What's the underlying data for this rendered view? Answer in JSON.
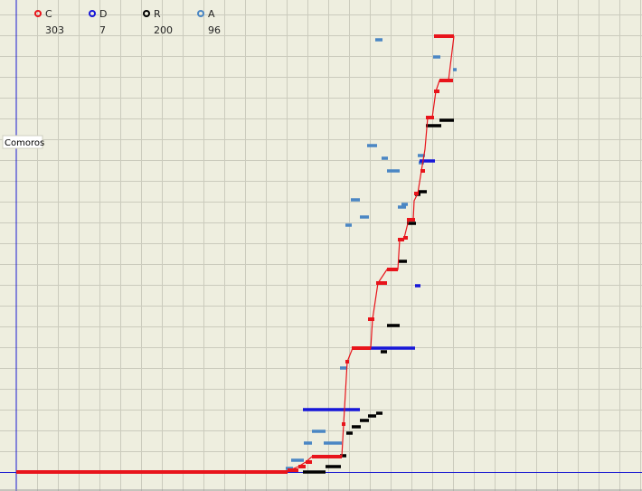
{
  "chart_data": {
    "type": "line",
    "title": "",
    "xlabel": "",
    "ylabel": "",
    "grid": true,
    "legend_position": "top-left",
    "annotation": "Comoros",
    "series": [
      {
        "name": "C",
        "count": "303",
        "color": "#e8141b"
      },
      {
        "name": "D",
        "count": "7",
        "color": "#1616d8"
      },
      {
        "name": "R",
        "count": "200",
        "color": "#000000"
      },
      {
        "name": "A",
        "count": "96",
        "color": "#4a86c4"
      }
    ],
    "c_step_line": [
      [
        18,
        522
      ],
      [
        318,
        522
      ],
      [
        320,
        520
      ],
      [
        330,
        516
      ],
      [
        338,
        511
      ],
      [
        345,
        505
      ],
      [
        378,
        505
      ],
      [
        380,
        469
      ],
      [
        384,
        400
      ],
      [
        390,
        385
      ],
      [
        410,
        385
      ],
      [
        412,
        353
      ],
      [
        418,
        313
      ],
      [
        428,
        298
      ],
      [
        440,
        298
      ],
      [
        442,
        265
      ],
      [
        447,
        263
      ],
      [
        452,
        243
      ],
      [
        457,
        243
      ],
      [
        458,
        222
      ],
      [
        462,
        214
      ],
      [
        466,
        189
      ],
      [
        470,
        165
      ],
      [
        473,
        130
      ],
      [
        478,
        130
      ],
      [
        482,
        101
      ],
      [
        486,
        89
      ],
      [
        490,
        89
      ],
      [
        492,
        89
      ],
      [
        496,
        89
      ],
      [
        502,
        40
      ]
    ],
    "c_bars": [
      [
        18,
        318,
        522
      ],
      [
        318,
        330,
        520
      ],
      [
        330,
        338,
        516
      ],
      [
        338,
        345,
        511
      ],
      [
        345,
        378,
        505
      ],
      [
        378,
        382,
        469
      ],
      [
        382,
        386,
        400
      ],
      [
        389,
        410,
        385
      ],
      [
        407,
        414,
        353
      ],
      [
        416,
        428,
        313
      ],
      [
        428,
        440,
        298
      ],
      [
        440,
        447,
        265
      ],
      [
        446,
        451,
        263
      ],
      [
        450,
        459,
        243
      ],
      [
        458,
        463,
        214
      ],
      [
        465,
        470,
        189
      ],
      [
        471,
        480,
        130
      ],
      [
        480,
        486,
        101
      ],
      [
        486,
        501,
        89
      ],
      [
        480,
        502,
        40
      ]
    ],
    "d_bars": [
      [
        335,
        398,
        453
      ],
      [
        396,
        459,
        385
      ],
      [
        459,
        465,
        316
      ],
      [
        464,
        481,
        178
      ],
      [
        480,
        502,
        40
      ]
    ],
    "r_bars": [
      [
        335,
        360,
        522
      ],
      [
        360,
        377,
        516
      ],
      [
        376,
        383,
        504
      ],
      [
        383,
        390,
        479
      ],
      [
        389,
        399,
        472
      ],
      [
        398,
        408,
        465
      ],
      [
        407,
        416,
        460
      ],
      [
        416,
        423,
        457
      ],
      [
        421,
        428,
        389
      ],
      [
        428,
        442,
        360
      ],
      [
        441,
        450,
        289
      ],
      [
        450,
        460,
        247
      ],
      [
        459,
        465,
        215
      ],
      [
        463,
        472,
        212
      ],
      [
        471,
        488,
        139
      ],
      [
        486,
        502,
        133
      ]
    ],
    "a_bars": [
      [
        316,
        324,
        518
      ],
      [
        322,
        336,
        509
      ],
      [
        336,
        345,
        490
      ],
      [
        345,
        360,
        477
      ],
      [
        358,
        378,
        490
      ],
      [
        376,
        384,
        407
      ],
      [
        382,
        389,
        249
      ],
      [
        388,
        398,
        221
      ],
      [
        398,
        408,
        240
      ],
      [
        406,
        417,
        161
      ],
      [
        415,
        423,
        44
      ],
      [
        422,
        429,
        175
      ],
      [
        428,
        442,
        189
      ],
      [
        440,
        449,
        229
      ],
      [
        444,
        451,
        226
      ],
      [
        462,
        470,
        172
      ],
      [
        463,
        469,
        180
      ],
      [
        479,
        487,
        63
      ],
      [
        501,
        505,
        77
      ]
    ]
  }
}
